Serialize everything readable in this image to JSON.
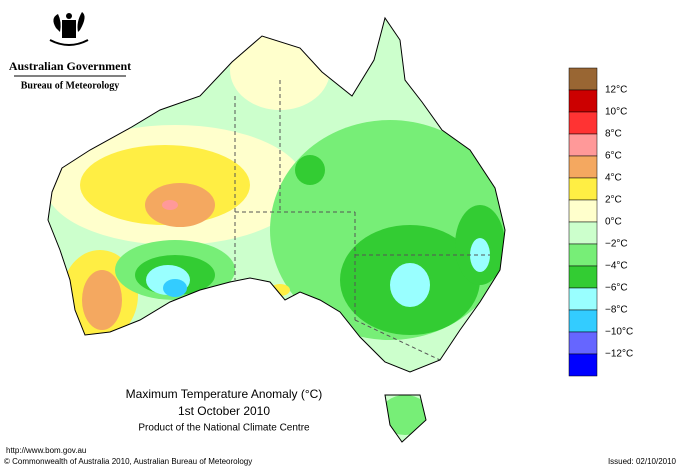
{
  "header": {
    "government": "Australian Government",
    "agency": "Bureau of Meteorology"
  },
  "map": {
    "title": "Maximum Temperature Anomaly (°C)",
    "date": "1st October 2010",
    "product": "Product of the National Climate Centre"
  },
  "legend": {
    "colors": [
      "#996633",
      "#cc0000",
      "#ff3333",
      "#ff9999",
      "#f4a860",
      "#ffee44",
      "#ffffcc",
      "#ccffcc",
      "#77ee77",
      "#33cc33",
      "#99ffff",
      "#33ccff",
      "#6666ff",
      "#0000ff"
    ],
    "labels": [
      "12°C",
      "10°C",
      "8°C",
      "6°C",
      "4°C",
      "2°C",
      "0°C",
      "−2°C",
      "−4°C",
      "−6°C",
      "−8°C",
      "−10°C",
      "−12°C"
    ]
  },
  "footer": {
    "url": "http://www.bom.gov.au",
    "copyright": "© Commonwealth of Australia 2010, Australian Bureau of Meteorology",
    "issued": "Issued: 02/10/2010"
  }
}
